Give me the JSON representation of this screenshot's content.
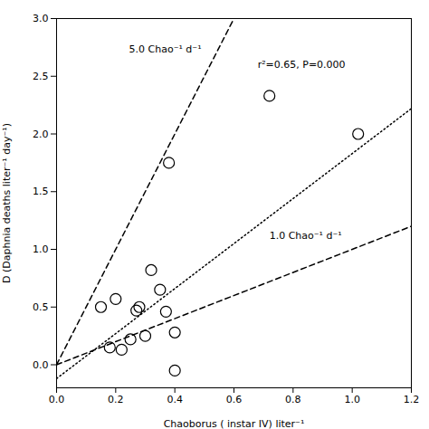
{
  "chart_data": {
    "type": "scatter",
    "xlabel": "Chaoborus ( instar IV) liter⁻¹",
    "ylabel": "D (Daphnia deaths liter⁻¹ day⁻¹)",
    "series": [
      {
        "type": "scatter",
        "marker": "circle",
        "x": [
          0.15,
          0.18,
          0.2,
          0.22,
          0.25,
          0.27,
          0.28,
          0.3,
          0.32,
          0.35,
          0.37,
          0.38,
          0.4,
          0.4,
          0.72,
          1.02
        ],
        "values": [
          0.5,
          0.15,
          0.57,
          0.13,
          0.22,
          0.47,
          0.5,
          0.25,
          0.82,
          0.65,
          0.46,
          1.75,
          0.28,
          -0.05,
          2.33,
          2.0
        ]
      },
      {
        "type": "line",
        "line_style": "dashed",
        "x": [
          0.0,
          0.6
        ],
        "values": [
          0.0,
          3.0
        ]
      },
      {
        "type": "line",
        "line_style": "dashed",
        "x": [
          0.0,
          1.2
        ],
        "values": [
          0.0,
          1.2
        ]
      },
      {
        "type": "line",
        "line_style": "dotted",
        "x": [
          0.0,
          1.2
        ],
        "values": [
          -0.12,
          2.22
        ]
      }
    ],
    "annotations": [
      "5.0 Chao⁻¹ d⁻¹",
      "1.0 Chao⁻¹ d⁻¹",
      "r²=0.65, P=0.000"
    ],
    "xlim": [
      0.0,
      1.2
    ],
    "ylim": [
      -0.2,
      3.0
    ],
    "xticks": [
      {
        "value": 0,
        "label": "0.0"
      },
      0.2,
      0.4,
      0.6,
      0.8,
      {
        "value": 1,
        "label": "1.0"
      },
      1.2
    ],
    "yticks": [
      {
        "value": 0,
        "label": "0.0"
      },
      0.5,
      {
        "value": 1,
        "label": "1.0"
      },
      1.5,
      {
        "value": 2,
        "label": "2.0"
      },
      2.5,
      {
        "value": 3,
        "label": "3.0"
      }
    ],
    "grid": false
  }
}
